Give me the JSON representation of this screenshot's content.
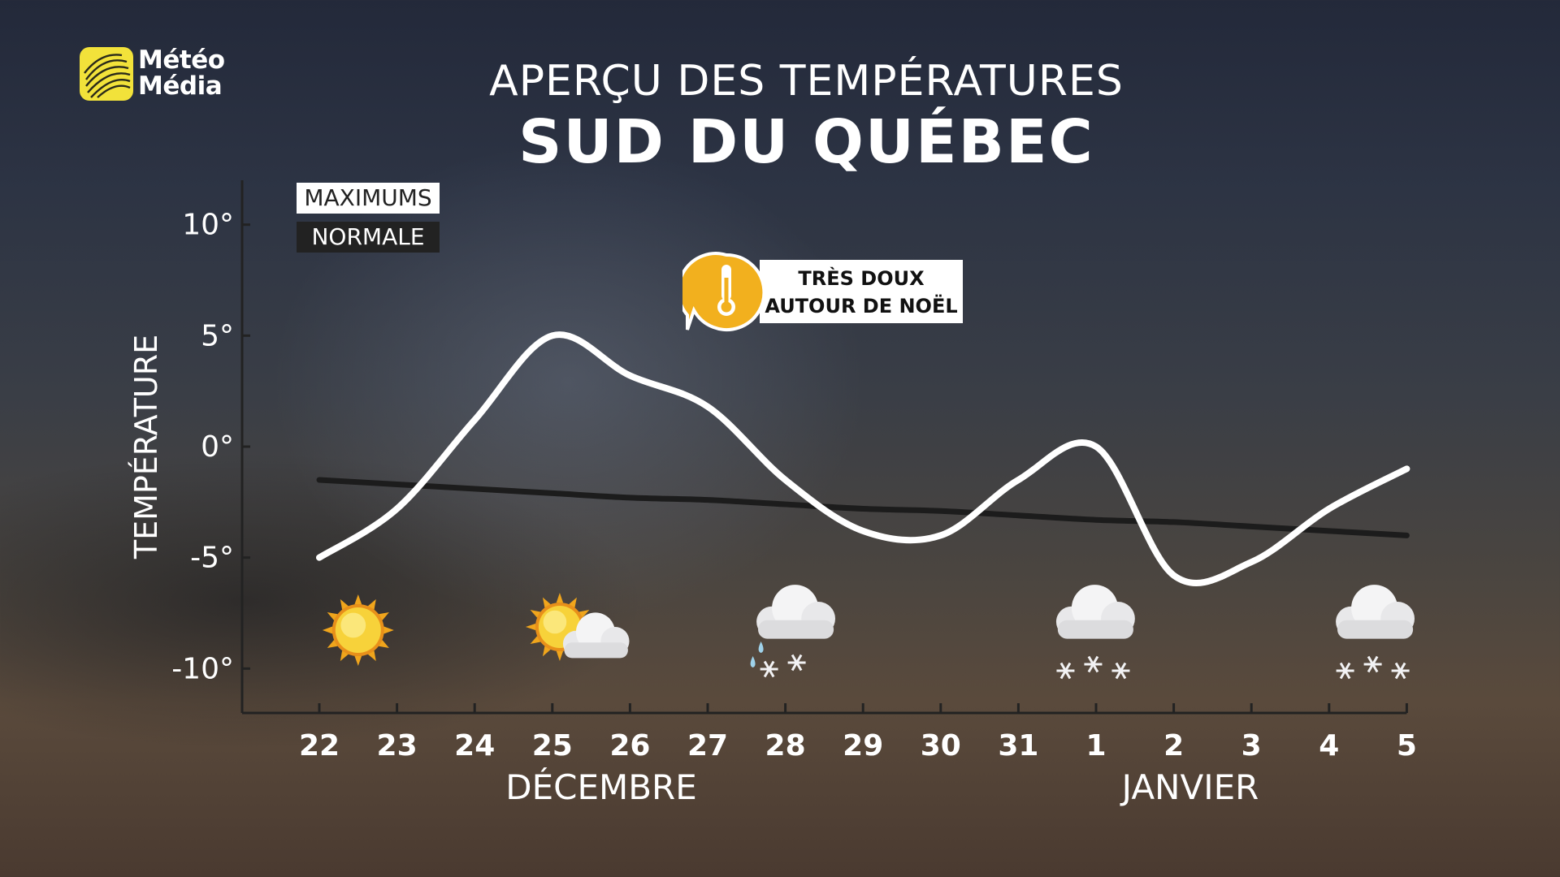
{
  "header": {
    "brand_line1": "Météo",
    "brand_line2": "Média",
    "title": "APERÇU DES TEMPÉRATURES",
    "subtitle": "SUD DU QUÉBEC"
  },
  "legend": {
    "max_label": "MAXIMUMS",
    "normal_label": "NORMALE"
  },
  "callout": {
    "line1": "TRÈS DOUX",
    "line2": "AUTOUR DE NOËL",
    "icon": "thermometer-icon",
    "color": "#f2b01e"
  },
  "chart_data": {
    "type": "line",
    "ylabel": "TEMPÉRATURE",
    "ylim": [
      -12,
      12
    ],
    "yticks": [
      10,
      5,
      0,
      -5,
      -10
    ],
    "ytick_labels": [
      "10°",
      "5°",
      "0°",
      "-5°",
      "-10°"
    ],
    "categories": [
      "22",
      "23",
      "24",
      "25",
      "26",
      "27",
      "28",
      "29",
      "30",
      "31",
      "1",
      "2",
      "3",
      "4",
      "5"
    ],
    "month_labels": [
      {
        "text": "DÉCEMBRE",
        "center_index": 3.5
      },
      {
        "text": "JANVIER",
        "center_index": 11.2
      }
    ],
    "series": [
      {
        "name": "MAXIMUMS",
        "color": "#ffffff",
        "values": [
          -5,
          -2.8,
          1.2,
          5,
          3.2,
          1.8,
          -1.5,
          -3.8,
          -4,
          -1.5,
          0,
          -5.8,
          -5.2,
          -2.8,
          -1
        ]
      },
      {
        "name": "NORMALE",
        "color": "#1c1c1c",
        "values": [
          -1.5,
          -1.7,
          -1.9,
          -2.1,
          -2.3,
          -2.4,
          -2.6,
          -2.8,
          -2.9,
          -3.1,
          -3.3,
          -3.4,
          -3.6,
          -3.8,
          -4
        ]
      }
    ],
    "weather_icons": [
      {
        "index": 0.5,
        "icon": "sun-icon"
      },
      {
        "index": 3.2,
        "icon": "sun-cloud-icon"
      },
      {
        "index": 6.0,
        "icon": "cloud-rain-snow-icon"
      },
      {
        "index": 9.9,
        "icon": "cloud-snow-icon"
      },
      {
        "index": 13.5,
        "icon": "cloud-snow-icon"
      }
    ],
    "grid": false
  }
}
